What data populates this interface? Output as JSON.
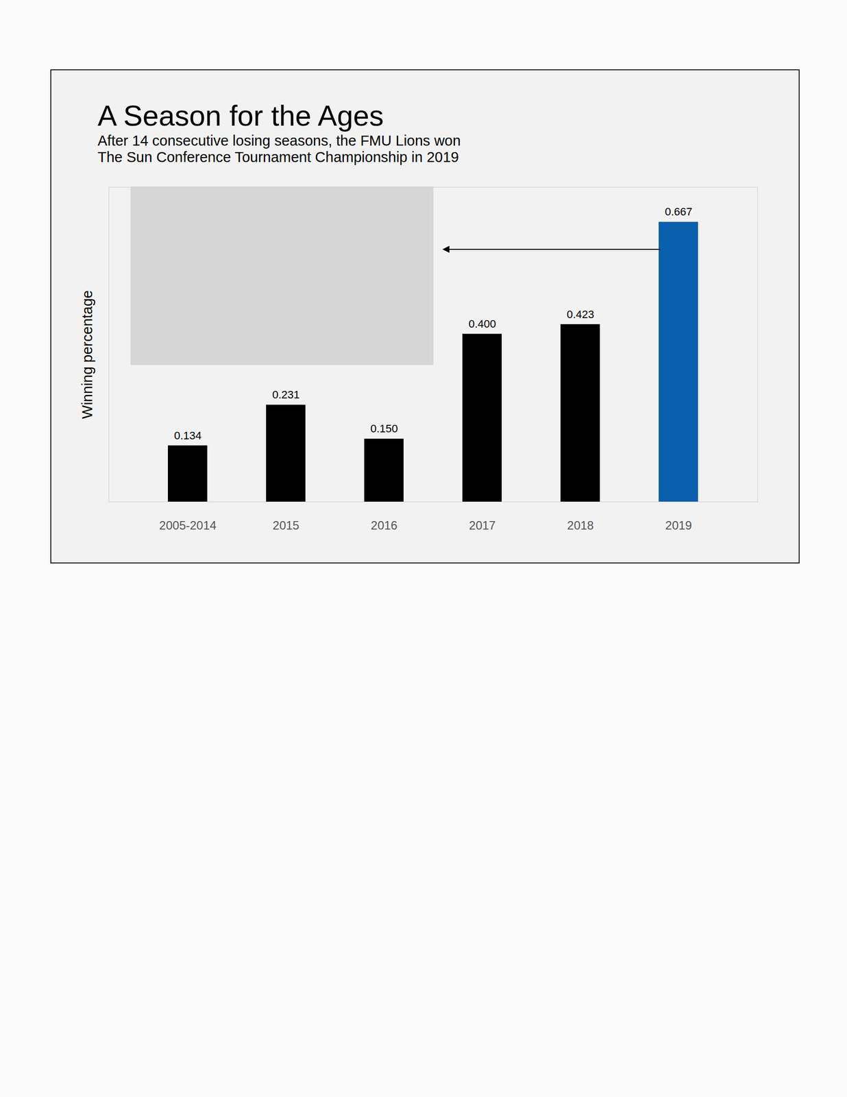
{
  "chart_data": {
    "type": "bar",
    "title": "A Season for the Ages",
    "subtitle": "After 14 consecutive losing seasons, the FMU Lions won\nThe Sun Conference Tournament Championship in 2019",
    "y_label": "Winning percentage",
    "categories": [
      "2005-2014",
      "2015",
      "2016",
      "2017",
      "2018",
      "2019"
    ],
    "values": [
      0.134,
      0.231,
      0.15,
      0.4,
      0.423,
      0.667
    ],
    "value_labels": [
      "0.134",
      "0.231",
      "0.150",
      "0.400",
      "0.423",
      "0.667"
    ],
    "colors": [
      "#000000",
      "#000000",
      "#000000",
      "#000000",
      "#000000",
      "#0a5fad"
    ],
    "ylim": [
      0,
      0.75
    ],
    "yticks": [],
    "data_labels": true,
    "tick_labels": "x",
    "grid": false
  }
}
